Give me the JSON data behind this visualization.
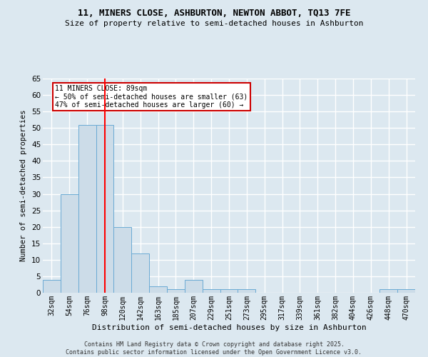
{
  "title_line1": "11, MINERS CLOSE, ASHBURTON, NEWTON ABBOT, TQ13 7FE",
  "title_line2": "Size of property relative to semi-detached houses in Ashburton",
  "xlabel": "Distribution of semi-detached houses by size in Ashburton",
  "ylabel": "Number of semi-detached properties",
  "bin_labels": [
    "32sqm",
    "54sqm",
    "76sqm",
    "98sqm",
    "120sqm",
    "142sqm",
    "163sqm",
    "185sqm",
    "207sqm",
    "229sqm",
    "251sqm",
    "273sqm",
    "295sqm",
    "317sqm",
    "339sqm",
    "361sqm",
    "382sqm",
    "404sqm",
    "426sqm",
    "448sqm",
    "470sqm"
  ],
  "bar_values": [
    4,
    30,
    51,
    51,
    20,
    12,
    2,
    1,
    4,
    1,
    1,
    1,
    0,
    0,
    0,
    0,
    0,
    0,
    0,
    1,
    1
  ],
  "bar_color": "#ccdce8",
  "bar_edge_color": "#6aaad4",
  "ylim": [
    0,
    65
  ],
  "yticks": [
    0,
    5,
    10,
    15,
    20,
    25,
    30,
    35,
    40,
    45,
    50,
    55,
    60,
    65
  ],
  "property_bin_index": 3,
  "vline_color": "#ff0000",
  "annotation_text": "11 MINERS CLOSE: 89sqm\n← 50% of semi-detached houses are smaller (63)\n47% of semi-detached houses are larger (60) →",
  "annotation_box_color": "#cc0000",
  "footer_line1": "Contains HM Land Registry data © Crown copyright and database right 2025.",
  "footer_line2": "Contains public sector information licensed under the Open Government Licence v3.0.",
  "background_color": "#dce8f0",
  "plot_bg_color": "#dce8f0",
  "grid_color": "#ffffff",
  "title1_fontsize": 9,
  "title2_fontsize": 8,
  "ylabel_fontsize": 7.5,
  "xlabel_fontsize": 8,
  "tick_fontsize": 7,
  "footer_fontsize": 6
}
